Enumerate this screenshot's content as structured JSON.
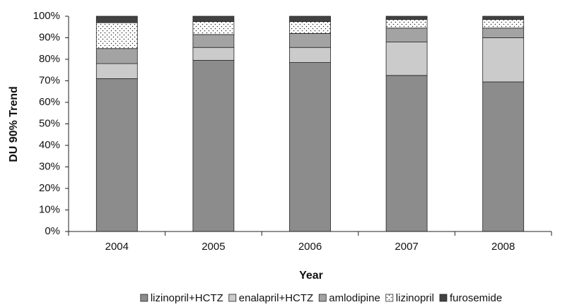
{
  "chart_data": {
    "type": "stacked_bar",
    "categories": [
      "2004",
      "2005",
      "2006",
      "2007",
      "2008"
    ],
    "x_label": "Year",
    "y_label": "DU 90% Trend",
    "ylim": [
      0,
      100
    ],
    "yticks": [
      {
        "value": 0,
        "label": "0%"
      },
      {
        "value": 10,
        "label": "10%"
      },
      {
        "value": 20,
        "label": "20%"
      },
      {
        "value": 30,
        "label": "30%"
      },
      {
        "value": 40,
        "label": "40%"
      },
      {
        "value": 50,
        "label": "50%"
      },
      {
        "value": 60,
        "label": "60%"
      },
      {
        "value": 70,
        "label": "70%"
      },
      {
        "value": 80,
        "label": "80%"
      },
      {
        "value": 90,
        "label": "90%"
      },
      {
        "value": 100,
        "label": "100%"
      }
    ],
    "legend": "bottom",
    "series": [
      {
        "name": "lizinopril+HCTZ",
        "color": "#8c8c8c",
        "values": [
          71,
          79.5,
          78.5,
          72.5,
          69.5
        ]
      },
      {
        "name": "enalapril+HCTZ",
        "color": "#cbcbcb",
        "values": [
          7,
          6,
          7,
          15.5,
          20.5
        ]
      },
      {
        "name": "amlodipine",
        "color": "#a3a3a3",
        "values": [
          7,
          6,
          6.5,
          6.5,
          4.5
        ]
      },
      {
        "name": "lizinopril",
        "color": "#ffffff",
        "pattern": "dots",
        "values": [
          12,
          6,
          5.5,
          4,
          4
        ]
      },
      {
        "name": "furosemide",
        "color": "#424242",
        "values": [
          3,
          2.5,
          2.5,
          1.5,
          1.5
        ]
      }
    ]
  }
}
